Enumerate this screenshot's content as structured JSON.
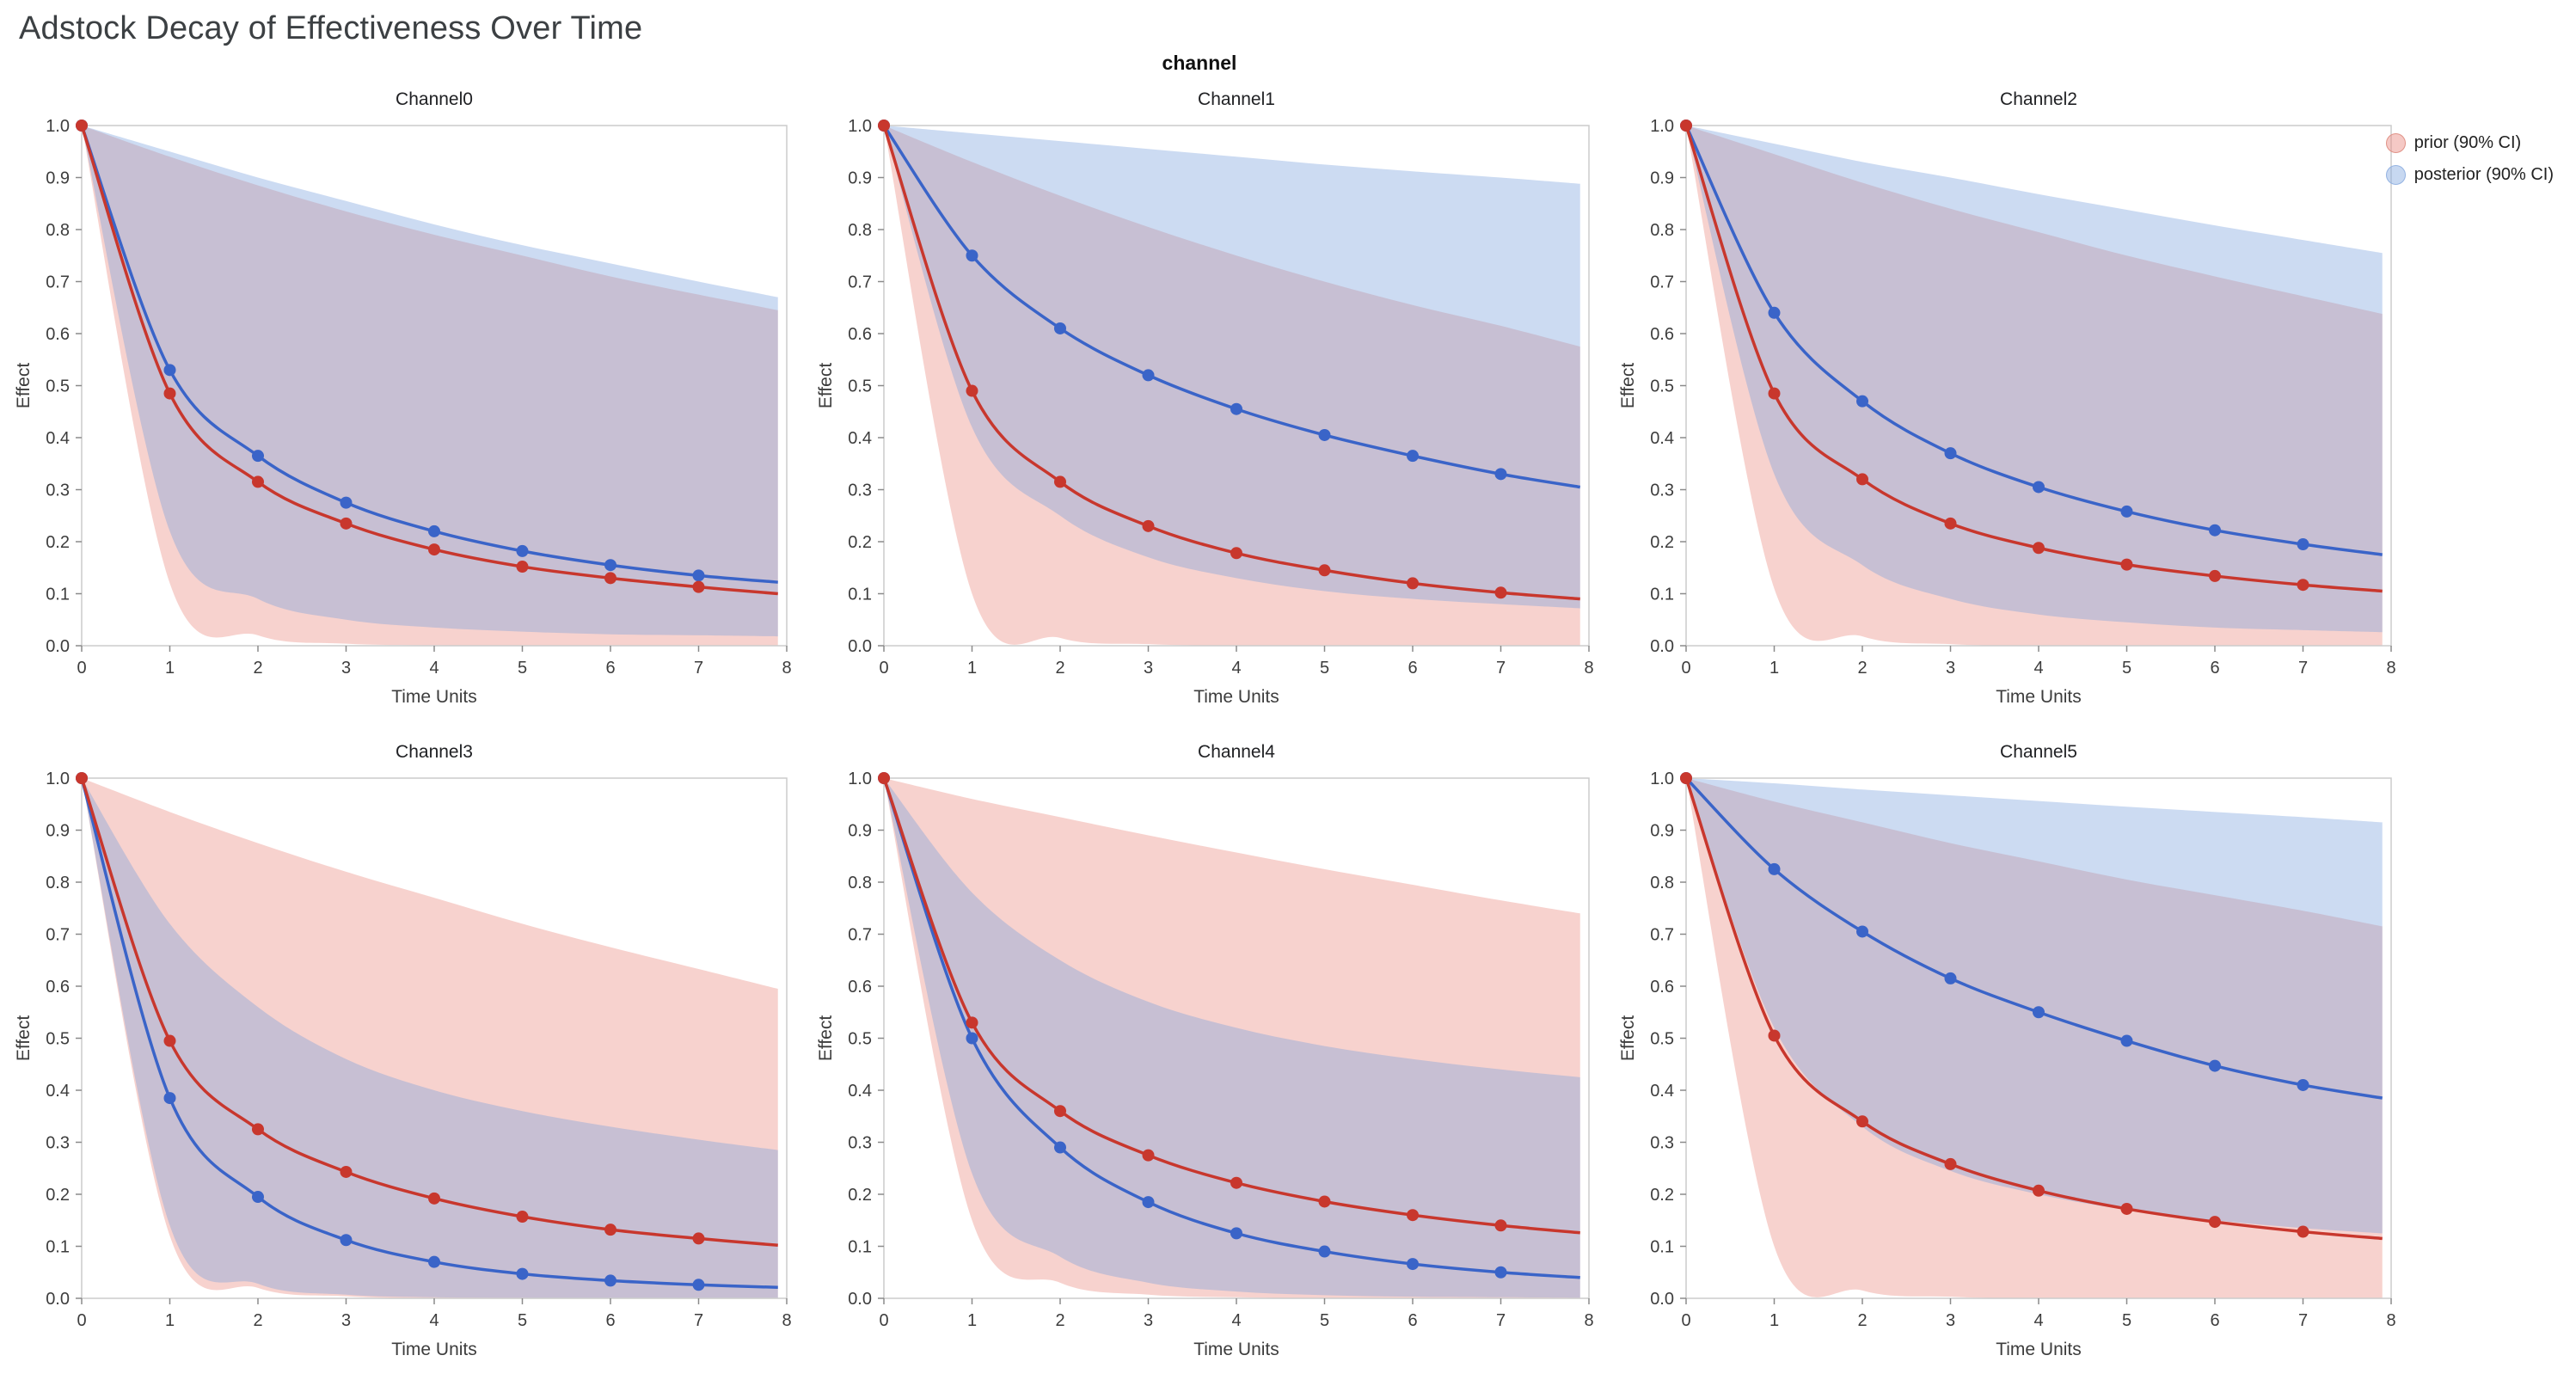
{
  "title": "Adstock Decay of Effectiveness Over Time",
  "facet_label": "channel",
  "legend": {
    "items": [
      {
        "label": "prior (90% CI)",
        "color": "rgba(233,136,126,0.45)",
        "edge": "#e09287"
      },
      {
        "label": "posterior (90% CI)",
        "color": "rgba(130,168,224,0.45)",
        "edge": "#94b3e2"
      }
    ]
  },
  "colors": {
    "prior_line": "#c8372d",
    "posterior_line": "#3a64c8",
    "prior_band": "rgba(233,136,126,0.38)",
    "posterior_band": "rgba(120,160,220,0.38)",
    "axis_box": "#cccccc",
    "tick": "#8a8a8a",
    "tick_label": "#3d3d3d",
    "subplot_title": "#202124"
  },
  "axes": {
    "xlabel": "Time Units",
    "ylabel": "Effect",
    "xlim": [
      0,
      8
    ],
    "ylim": [
      0,
      1
    ],
    "xticks": [
      0,
      1,
      2,
      3,
      4,
      5,
      6,
      7,
      8
    ],
    "yticks": [
      0,
      0.1,
      0.2,
      0.3,
      0.4,
      0.5,
      0.6,
      0.7,
      0.8,
      0.9,
      1.0
    ]
  },
  "chart_data": {
    "type": "line",
    "x": [
      0,
      1,
      2,
      3,
      4,
      5,
      6,
      7,
      7.9
    ],
    "marker_count": 8,
    "series_names": [
      "prior mean",
      "posterior mean"
    ],
    "charts": [
      {
        "title": "Channel0",
        "prior": {
          "mean": [
            1.0,
            0.485,
            0.315,
            0.235,
            0.185,
            0.152,
            0.13,
            0.113,
            0.1
          ],
          "lower": [
            1.0,
            0.12,
            0.02,
            0.004,
            0.001,
            0.0,
            0.0,
            0.0,
            0.0
          ],
          "upper": [
            1.0,
            0.94,
            0.885,
            0.835,
            0.79,
            0.75,
            0.71,
            0.675,
            0.645
          ]
        },
        "posterior": {
          "mean": [
            1.0,
            0.53,
            0.365,
            0.275,
            0.22,
            0.182,
            0.155,
            0.135,
            0.122
          ],
          "lower": [
            1.0,
            0.22,
            0.09,
            0.05,
            0.035,
            0.027,
            0.022,
            0.02,
            0.018
          ],
          "upper": [
            1.0,
            0.95,
            0.9,
            0.855,
            0.81,
            0.77,
            0.735,
            0.7,
            0.67
          ]
        }
      },
      {
        "title": "Channel1",
        "prior": {
          "mean": [
            1.0,
            0.49,
            0.315,
            0.23,
            0.178,
            0.145,
            0.12,
            0.102,
            0.09
          ],
          "lower": [
            1.0,
            0.1,
            0.015,
            0.003,
            0.0,
            0.0,
            0.0,
            0.0,
            0.0
          ],
          "upper": [
            1.0,
            0.93,
            0.865,
            0.805,
            0.75,
            0.7,
            0.655,
            0.615,
            0.575
          ]
        },
        "posterior": {
          "mean": [
            1.0,
            0.75,
            0.61,
            0.52,
            0.455,
            0.405,
            0.365,
            0.33,
            0.305
          ],
          "lower": [
            1.0,
            0.42,
            0.25,
            0.17,
            0.13,
            0.105,
            0.09,
            0.08,
            0.072
          ],
          "upper": [
            1.0,
            0.985,
            0.97,
            0.955,
            0.94,
            0.925,
            0.912,
            0.9,
            0.888
          ]
        }
      },
      {
        "title": "Channel2",
        "prior": {
          "mean": [
            1.0,
            0.485,
            0.32,
            0.235,
            0.188,
            0.156,
            0.134,
            0.117,
            0.105
          ],
          "lower": [
            1.0,
            0.11,
            0.018,
            0.003,
            0.0,
            0.0,
            0.0,
            0.0,
            0.0
          ],
          "upper": [
            1.0,
            0.945,
            0.89,
            0.84,
            0.795,
            0.75,
            0.71,
            0.672,
            0.638
          ]
        },
        "posterior": {
          "mean": [
            1.0,
            0.64,
            0.47,
            0.37,
            0.305,
            0.258,
            0.222,
            0.195,
            0.175
          ],
          "lower": [
            1.0,
            0.33,
            0.155,
            0.09,
            0.06,
            0.045,
            0.035,
            0.03,
            0.026
          ],
          "upper": [
            1.0,
            0.965,
            0.93,
            0.9,
            0.868,
            0.838,
            0.808,
            0.78,
            0.755
          ]
        }
      },
      {
        "title": "Channel3",
        "prior": {
          "mean": [
            1.0,
            0.495,
            0.325,
            0.243,
            0.192,
            0.157,
            0.132,
            0.115,
            0.102
          ],
          "lower": [
            1.0,
            0.12,
            0.02,
            0.004,
            0.0,
            0.0,
            0.0,
            0.0,
            0.0
          ],
          "upper": [
            1.0,
            0.935,
            0.875,
            0.82,
            0.77,
            0.72,
            0.675,
            0.633,
            0.595
          ]
        },
        "posterior": {
          "mean": [
            1.0,
            0.385,
            0.195,
            0.112,
            0.07,
            0.047,
            0.034,
            0.026,
            0.021
          ],
          "lower": [
            1.0,
            0.14,
            0.028,
            0.007,
            0.002,
            0.001,
            0.0,
            0.0,
            0.0
          ],
          "upper": [
            1.0,
            0.72,
            0.56,
            0.46,
            0.4,
            0.36,
            0.33,
            0.305,
            0.285
          ]
        }
      },
      {
        "title": "Channel4",
        "prior": {
          "mean": [
            1.0,
            0.53,
            0.36,
            0.275,
            0.222,
            0.186,
            0.16,
            0.14,
            0.126
          ],
          "lower": [
            1.0,
            0.15,
            0.03,
            0.007,
            0.002,
            0.0,
            0.0,
            0.0,
            0.0
          ],
          "upper": [
            1.0,
            0.96,
            0.925,
            0.89,
            0.857,
            0.825,
            0.795,
            0.765,
            0.74
          ]
        },
        "posterior": {
          "mean": [
            1.0,
            0.5,
            0.29,
            0.185,
            0.125,
            0.09,
            0.066,
            0.05,
            0.04
          ],
          "lower": [
            1.0,
            0.24,
            0.08,
            0.03,
            0.013,
            0.006,
            0.003,
            0.002,
            0.001
          ],
          "upper": [
            1.0,
            0.78,
            0.65,
            0.57,
            0.52,
            0.485,
            0.46,
            0.44,
            0.425
          ]
        }
      },
      {
        "title": "Channel5",
        "prior": {
          "mean": [
            1.0,
            0.505,
            0.34,
            0.258,
            0.207,
            0.172,
            0.147,
            0.128,
            0.115
          ],
          "lower": [
            1.0,
            0.1,
            0.015,
            0.003,
            0.0,
            0.0,
            0.0,
            0.0,
            0.0
          ],
          "upper": [
            1.0,
            0.955,
            0.915,
            0.875,
            0.84,
            0.805,
            0.775,
            0.745,
            0.715
          ]
        },
        "posterior": {
          "mean": [
            1.0,
            0.825,
            0.705,
            0.615,
            0.55,
            0.495,
            0.447,
            0.41,
            0.385
          ],
          "lower": [
            1.0,
            0.52,
            0.33,
            0.245,
            0.2,
            0.17,
            0.15,
            0.135,
            0.125
          ],
          "upper": [
            1.0,
            0.99,
            0.978,
            0.967,
            0.956,
            0.945,
            0.935,
            0.925,
            0.915
          ]
        }
      }
    ]
  }
}
